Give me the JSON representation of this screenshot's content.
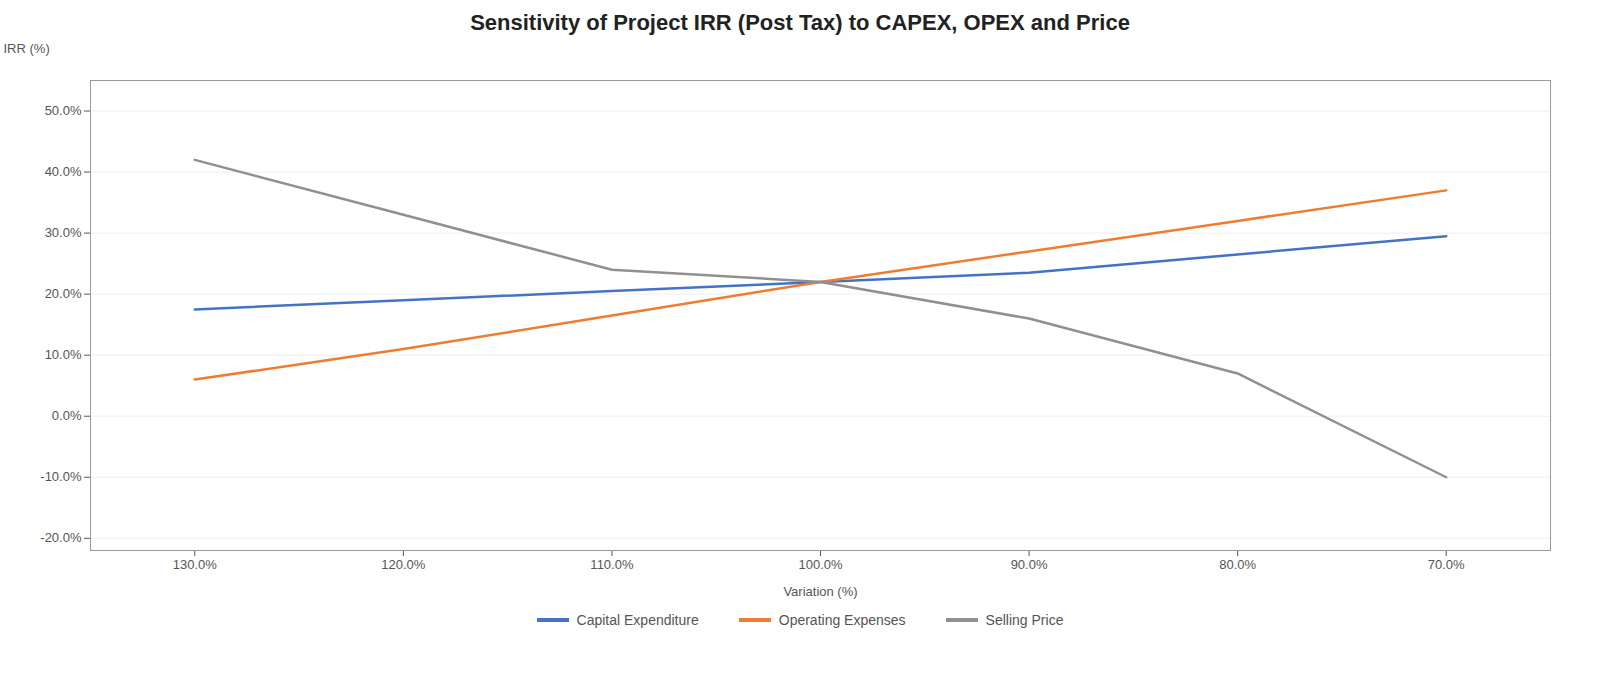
{
  "chart_data": {
    "type": "line",
    "title": "Sensitivity of Project IRR (Post Tax) to CAPEX, OPEX and Price",
    "xlabel": "Variation (%)",
    "ylabel": "IRR (%)",
    "x": [
      130,
      120,
      110,
      100,
      90,
      80,
      70
    ],
    "series": [
      {
        "name": "Capital Expenditure",
        "color": "#4472C4",
        "values": [
          17.5,
          19.0,
          20.5,
          22.0,
          23.5,
          26.5,
          29.5
        ]
      },
      {
        "name": "Operating Expenses",
        "color": "#ED7D31",
        "values": [
          6.0,
          11.0,
          16.5,
          22.0,
          27.0,
          32.0,
          37.0
        ]
      },
      {
        "name": "Selling Price",
        "color": "#909090",
        "values": [
          42.0,
          33.0,
          24.0,
          22.0,
          16.0,
          7.0,
          -10.0
        ]
      }
    ],
    "xlim": [
      135,
      65
    ],
    "xticks": [
      {
        "value": 130,
        "label": "130.0%"
      },
      {
        "value": 120,
        "label": "120.0%"
      },
      {
        "value": 110,
        "label": "110.0%"
      },
      {
        "value": 100,
        "label": "100.0%"
      },
      {
        "value": 90,
        "label": "90.0%"
      },
      {
        "value": 80,
        "label": "80.0%"
      },
      {
        "value": 70,
        "label": "70.0%"
      }
    ],
    "ylim": [
      -22,
      55
    ],
    "yticks": [
      {
        "value": -20,
        "label": "-20.0%"
      },
      {
        "value": -10,
        "label": "-10.0%"
      },
      {
        "value": 0,
        "label": "0.0%"
      },
      {
        "value": 10,
        "label": "10.0%"
      },
      {
        "value": 20,
        "label": "20.0%"
      },
      {
        "value": 30,
        "label": "30.0%"
      },
      {
        "value": 40,
        "label": "40.0%"
      },
      {
        "value": 50,
        "label": "50.0%"
      }
    ],
    "grid": true,
    "legend": "bottom"
  }
}
